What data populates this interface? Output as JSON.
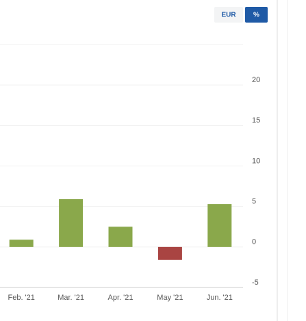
{
  "buttons": [
    {
      "label": "EUR",
      "active": false
    },
    {
      "label": "%",
      "active": true
    }
  ],
  "chart_data": {
    "type": "bar",
    "categories": [
      "Feb. '21",
      "Mar. '21",
      "Apr. '21",
      "May '21",
      "Jun. '21"
    ],
    "values": [
      0.9,
      5.9,
      2.5,
      -1.6,
      5.3
    ],
    "positive_color": "#8aa84b",
    "negative_color": "#a94442",
    "ylim": [
      -5,
      25
    ],
    "yticks": [
      -5,
      0,
      5,
      10,
      15,
      20
    ],
    "grid": true
  }
}
